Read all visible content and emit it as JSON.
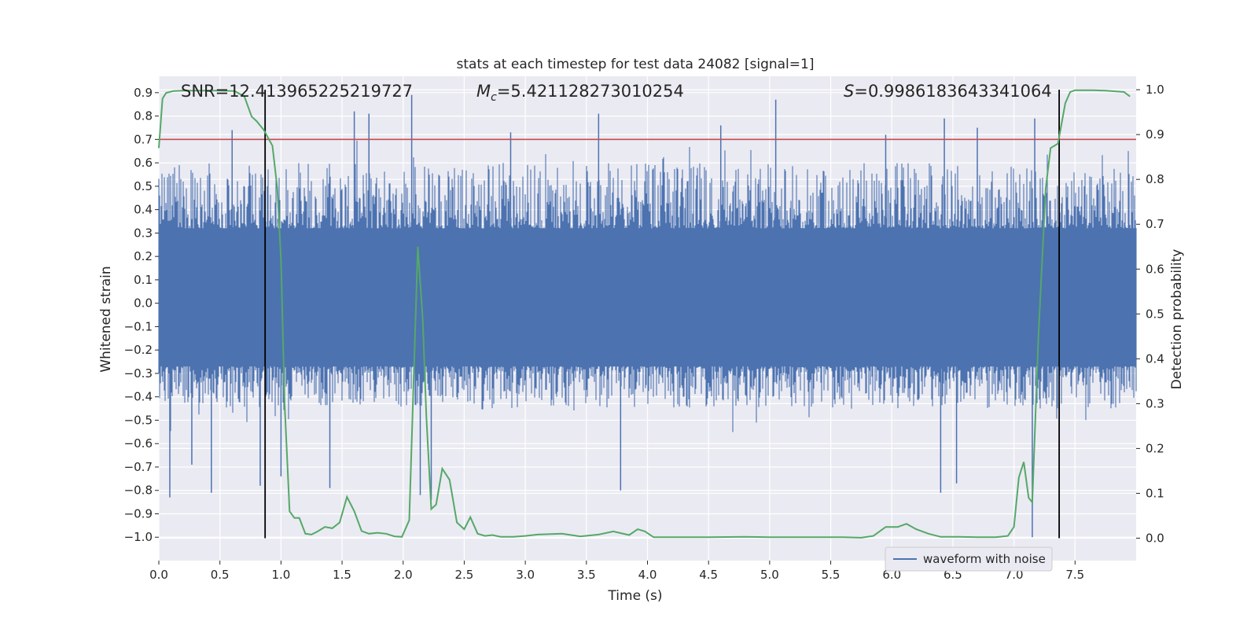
{
  "chart_data": {
    "type": "line",
    "title": "stats at each timestep for test data 24082 [signal=1]",
    "xlabel": "Time (s)",
    "ylabel": "Whitened strain",
    "ylabel_right": "Detection probability",
    "xlim": [
      0.0,
      8.0
    ],
    "ylim": [
      -1.1,
      0.97
    ],
    "ylim_right": [
      -0.05,
      1.03
    ],
    "x_ticks": [
      "0.0",
      "0.5",
      "1.0",
      "1.5",
      "2.0",
      "2.5",
      "3.0",
      "3.5",
      "4.0",
      "4.5",
      "5.0",
      "5.5",
      "6.0",
      "6.5",
      "7.0",
      "7.5"
    ],
    "y_ticks": [
      "0.9",
      "0.8",
      "0.7",
      "0.6",
      "0.5",
      "0.4",
      "0.3",
      "0.2",
      "0.1",
      "0.0",
      "-0.1",
      "-0.2",
      "-0.3",
      "-0.4",
      "-0.5",
      "-0.6",
      "-0.7",
      "-0.8",
      "-0.9",
      "-1.0"
    ],
    "y_ticks_right": [
      "1.0",
      "0.9",
      "0.8",
      "0.7",
      "0.6",
      "0.5",
      "0.4",
      "0.3",
      "0.2",
      "0.1",
      "0.0"
    ],
    "annotations": {
      "snr": "SNR=12.413965225219727",
      "mc_symbol": "M",
      "mc_sub": "c",
      "mc_value": "=5.421128273010254",
      "s_symbol": "S",
      "s_value": "=0.9986183643341064"
    },
    "threshold": 0.7,
    "vertical_lines": [
      0.87,
      7.37
    ],
    "legend": {
      "label": "waveform with noise",
      "placement": "lower-right"
    },
    "series": [
      {
        "name": "waveform with noise",
        "color": "#4c72b0",
        "axis": "left",
        "core_band": [
          -0.27,
          0.32
        ],
        "envelope_seed": 24082,
        "typical_range": [
          -0.45,
          0.6
        ],
        "peaks": [
          {
            "x": 0.09,
            "y": -0.83
          },
          {
            "x": 0.27,
            "y": -0.69
          },
          {
            "x": 0.43,
            "y": -0.81
          },
          {
            "x": 0.6,
            "y": 0.74
          },
          {
            "x": 0.83,
            "y": -0.78
          },
          {
            "x": 1.0,
            "y": -0.74
          },
          {
            "x": 1.4,
            "y": -0.79
          },
          {
            "x": 1.6,
            "y": 0.82
          },
          {
            "x": 1.72,
            "y": 0.81
          },
          {
            "x": 2.07,
            "y": 0.89
          },
          {
            "x": 2.14,
            "y": -0.82
          },
          {
            "x": 2.23,
            "y": -0.84
          },
          {
            "x": 2.88,
            "y": 0.73
          },
          {
            "x": 3.6,
            "y": 0.81
          },
          {
            "x": 3.78,
            "y": -0.8
          },
          {
            "x": 4.6,
            "y": 0.76
          },
          {
            "x": 5.05,
            "y": 0.87
          },
          {
            "x": 5.95,
            "y": 0.72
          },
          {
            "x": 6.4,
            "y": -0.81
          },
          {
            "x": 6.43,
            "y": 0.79
          },
          {
            "x": 6.53,
            "y": -0.77
          },
          {
            "x": 6.7,
            "y": 0.75
          },
          {
            "x": 7.15,
            "y": -1.0
          },
          {
            "x": 7.17,
            "y": 0.79
          }
        ]
      },
      {
        "name": "detection probability",
        "color": "#55a868",
        "axis": "right",
        "x": [
          0.0,
          0.03,
          0.06,
          0.12,
          0.2,
          0.35,
          0.5,
          0.62,
          0.7,
          0.76,
          0.8,
          0.86,
          0.93,
          0.97,
          1.0,
          1.03,
          1.07,
          1.11,
          1.15,
          1.2,
          1.25,
          1.3,
          1.36,
          1.42,
          1.48,
          1.54,
          1.6,
          1.66,
          1.72,
          1.79,
          1.86,
          1.93,
          1.99,
          2.05,
          2.12,
          2.16,
          2.19,
          2.23,
          2.27,
          2.32,
          2.38,
          2.44,
          2.5,
          2.55,
          2.61,
          2.67,
          2.73,
          2.8,
          2.9,
          3.0,
          3.1,
          3.3,
          3.45,
          3.6,
          3.72,
          3.85,
          3.92,
          3.98,
          4.05,
          4.2,
          4.5,
          4.8,
          5.0,
          5.2,
          5.4,
          5.6,
          5.75,
          5.85,
          5.95,
          6.05,
          6.12,
          6.2,
          6.3,
          6.4,
          6.55,
          6.7,
          6.85,
          6.95,
          7.0,
          7.04,
          7.08,
          7.12,
          7.15,
          7.2,
          7.26,
          7.3,
          7.36,
          7.42,
          7.46,
          7.5,
          7.55,
          7.65,
          7.75,
          7.9,
          7.95
        ],
        "values": [
          0.87,
          0.98,
          0.993,
          0.997,
          0.998,
          0.998,
          0.998,
          0.997,
          0.985,
          0.94,
          0.93,
          0.91,
          0.875,
          0.78,
          0.62,
          0.3,
          0.06,
          0.045,
          0.045,
          0.01,
          0.008,
          0.015,
          0.025,
          0.022,
          0.035,
          0.092,
          0.06,
          0.016,
          0.01,
          0.012,
          0.01,
          0.004,
          0.003,
          0.04,
          0.65,
          0.49,
          0.27,
          0.065,
          0.075,
          0.155,
          0.13,
          0.035,
          0.02,
          0.047,
          0.01,
          0.005,
          0.007,
          0.003,
          0.003,
          0.005,
          0.008,
          0.01,
          0.004,
          0.008,
          0.015,
          0.007,
          0.02,
          0.015,
          0.002,
          0.002,
          0.002,
          0.003,
          0.002,
          0.002,
          0.002,
          0.002,
          0.001,
          0.005,
          0.025,
          0.025,
          0.032,
          0.02,
          0.01,
          0.003,
          0.003,
          0.002,
          0.002,
          0.005,
          0.025,
          0.135,
          0.17,
          0.09,
          0.08,
          0.45,
          0.78,
          0.87,
          0.88,
          0.97,
          0.995,
          0.999,
          0.999,
          0.999,
          0.998,
          0.995,
          0.985
        ]
      }
    ]
  },
  "colors": {
    "plot_bg": "#eaeaf2",
    "grid": "#ffffff",
    "threshold": "#c44e52",
    "vline": "#000000",
    "text": "#262626"
  }
}
